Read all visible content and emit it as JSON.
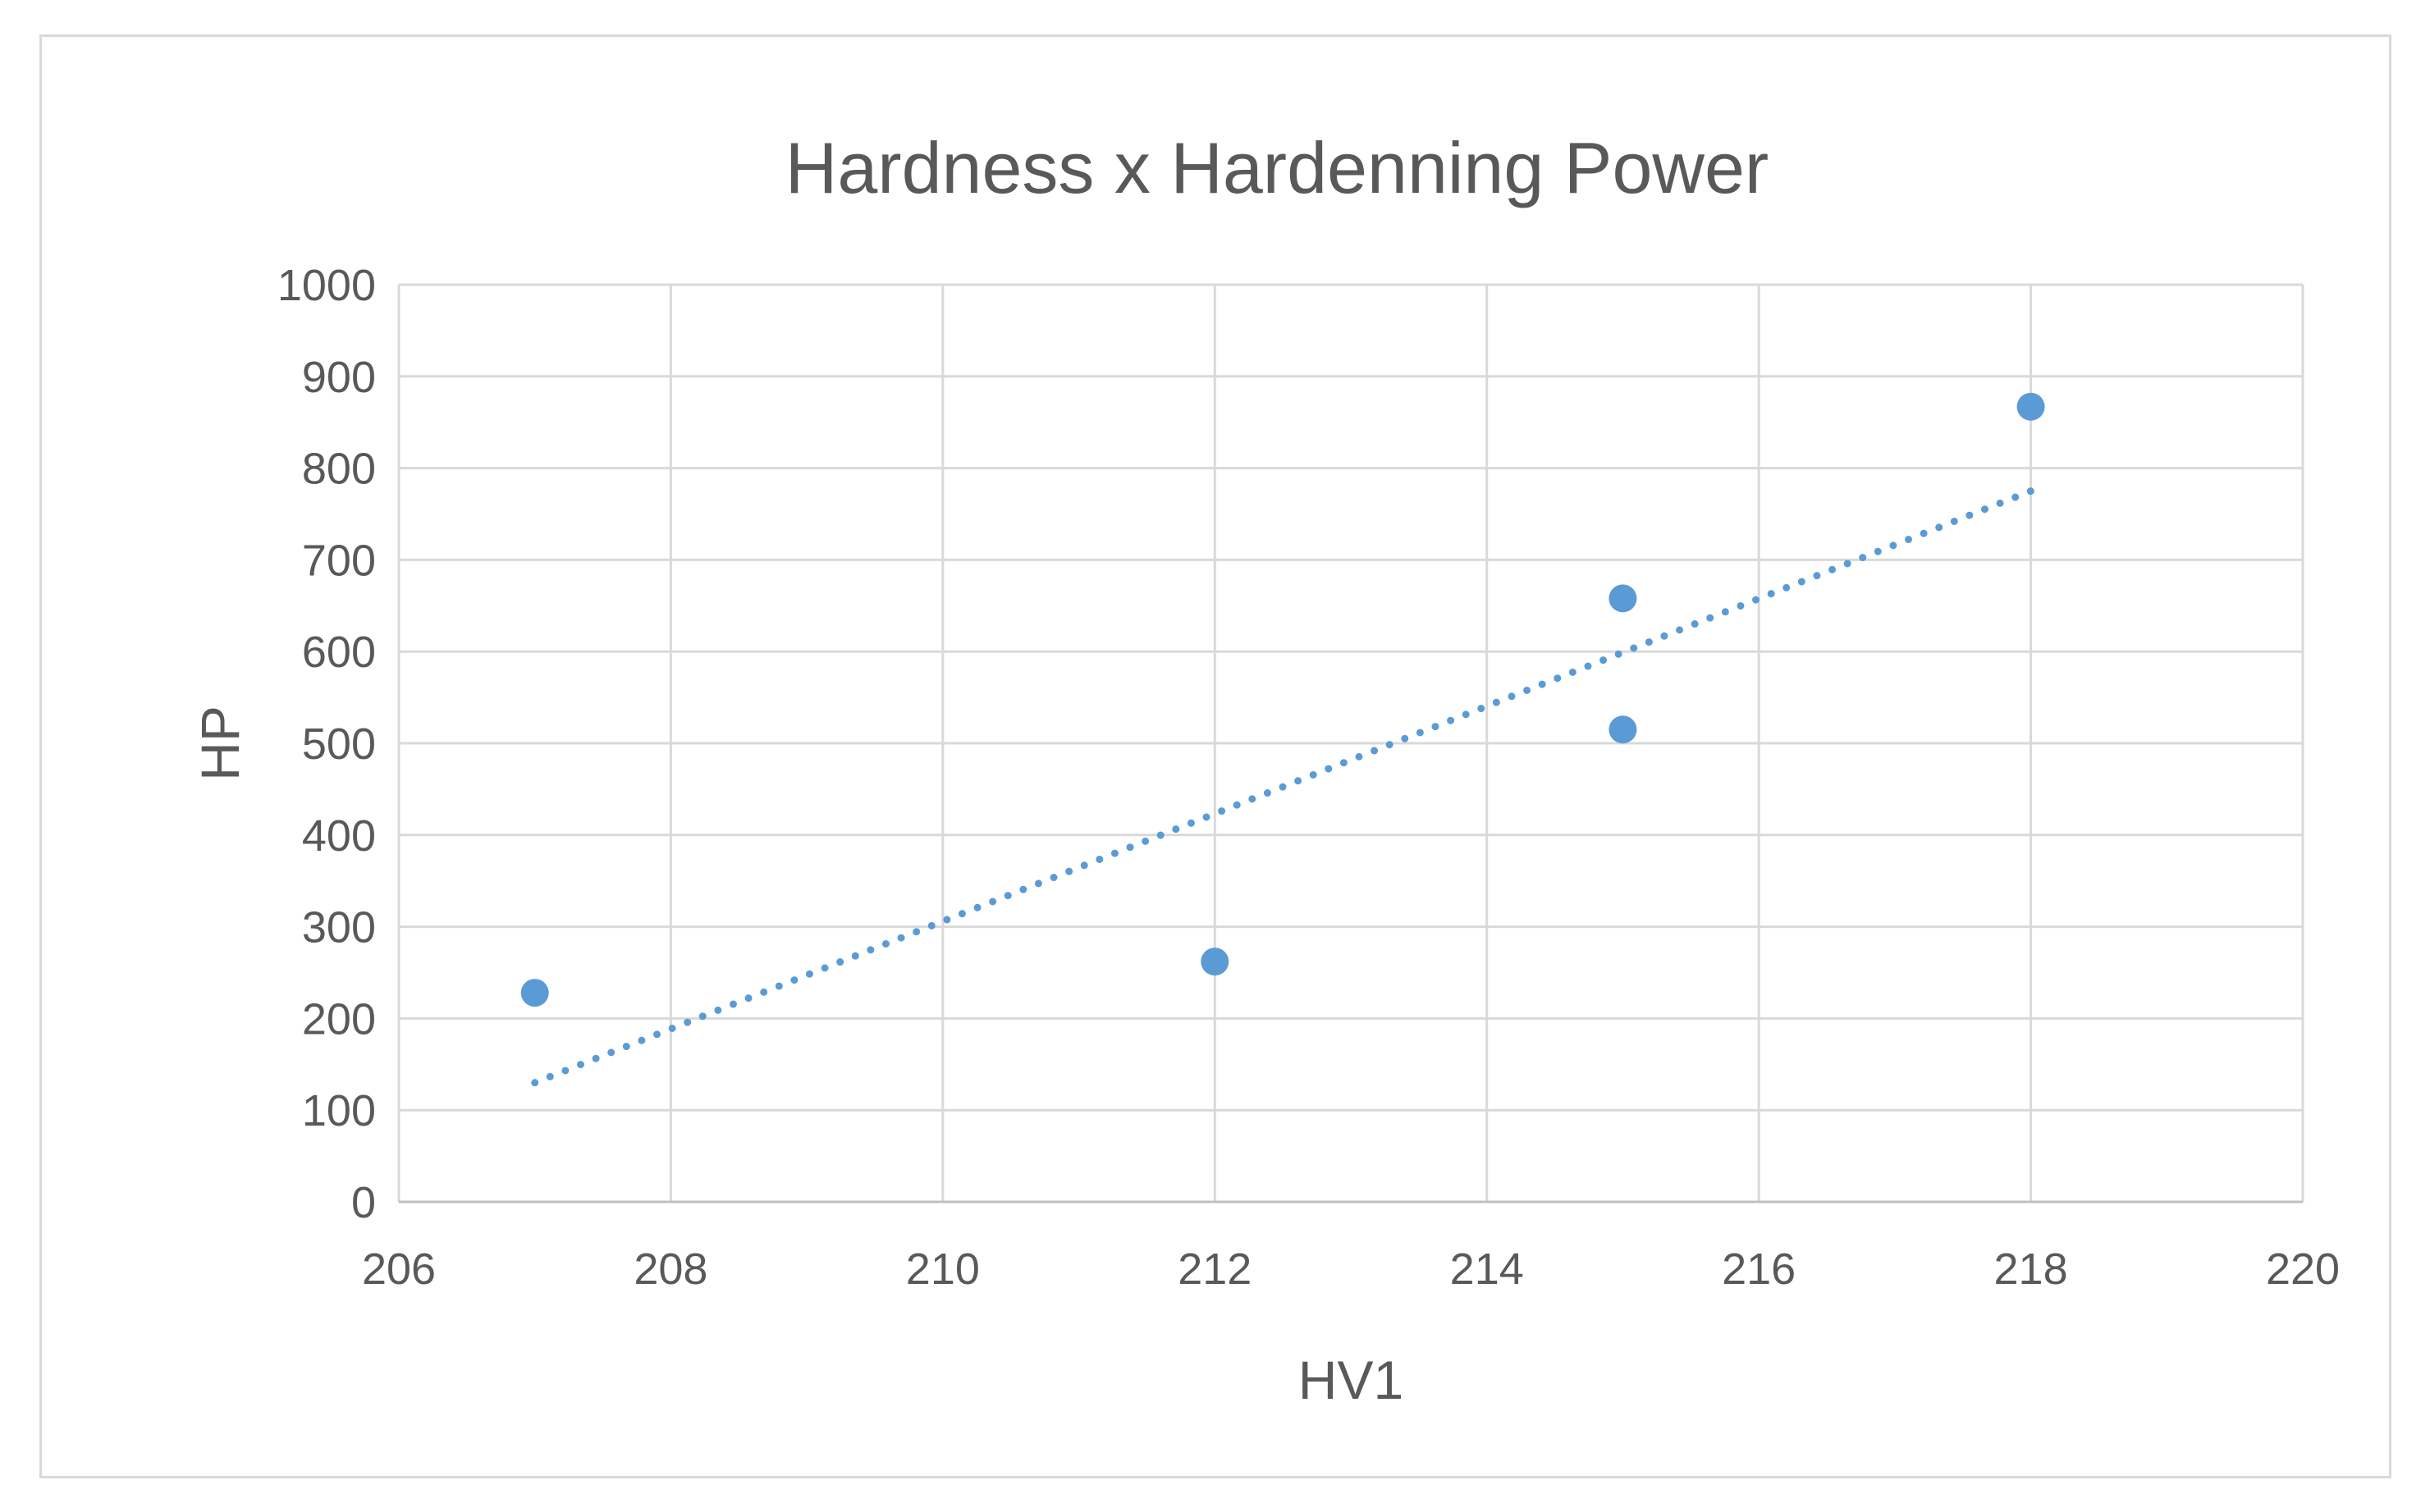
{
  "chart_data": {
    "type": "scatter",
    "title": "Hardness x Hardenning Power",
    "xlabel": "HV1",
    "ylabel": "HP",
    "xlim": [
      206,
      220
    ],
    "ylim": [
      0,
      1000
    ],
    "x_ticks": [
      206,
      208,
      210,
      212,
      214,
      216,
      218,
      220
    ],
    "y_ticks": [
      0,
      100,
      200,
      300,
      400,
      500,
      600,
      700,
      800,
      900,
      1000
    ],
    "grid": true,
    "legend": "none",
    "series": [
      {
        "color": "#5b9bd5",
        "points": [
          {
            "x": 207,
            "y": 228
          },
          {
            "x": 212,
            "y": 262
          },
          {
            "x": 215,
            "y": 658
          },
          {
            "x": 215,
            "y": 515
          },
          {
            "x": 218,
            "y": 867
          }
        ]
      }
    ],
    "trendline": {
      "type": "linear",
      "style": "dotted",
      "color": "#5b9bd5",
      "x_range": [
        207,
        218
      ],
      "y_range": [
        130,
        775
      ]
    }
  }
}
